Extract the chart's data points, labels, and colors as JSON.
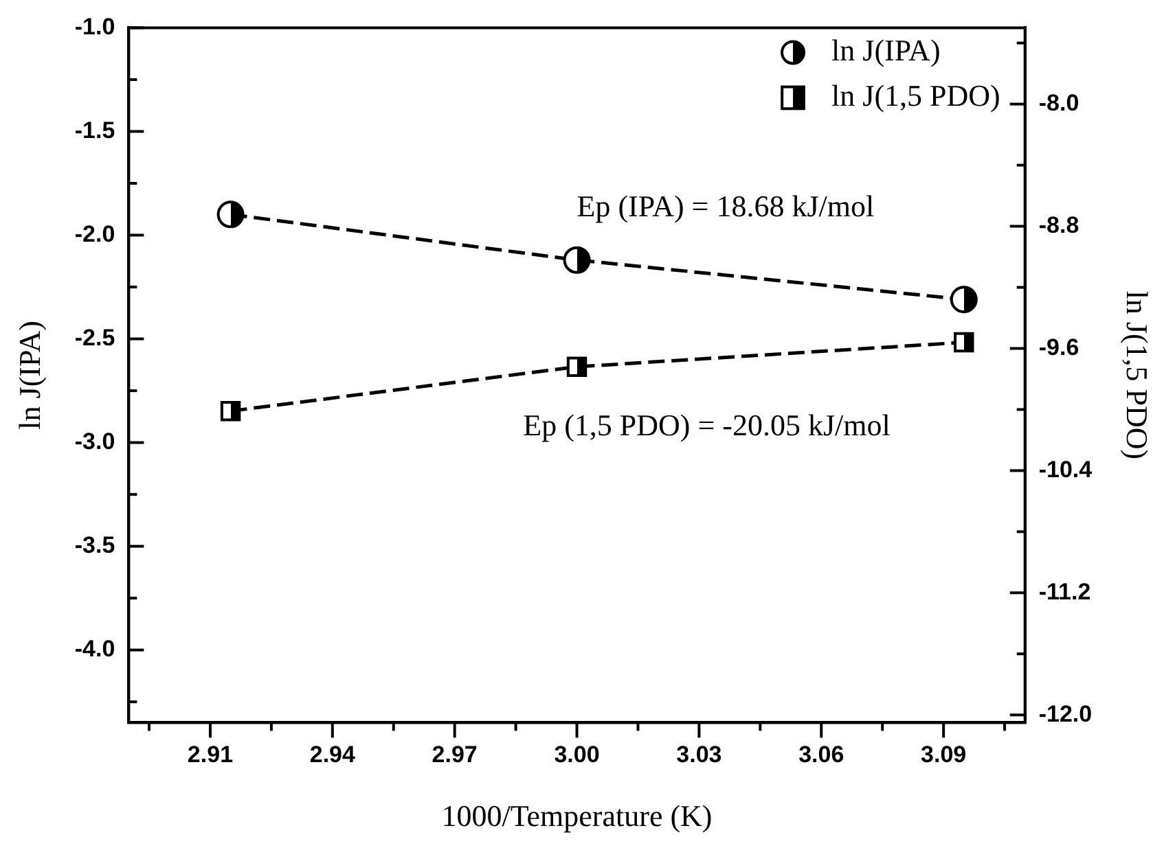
{
  "chart_data": {
    "type": "line",
    "xlabel": "1000/Temperature (K)",
    "ylabel": "ln J(IPA)",
    "y2label": "ln J(1,5 PDO)",
    "x": [
      2.915,
      3.0,
      3.095
    ],
    "series": [
      {
        "name": "ln J(IPA)",
        "color": "#000000",
        "values": [
          -1.9,
          -2.12,
          -2.31
        ],
        "marker": "circle",
        "line_style": "dashed"
      },
      {
        "name": "ln J(1,5 PDO)",
        "color": "#000000",
        "values": [
          -10.01,
          -9.72,
          -9.56
        ],
        "marker": "square",
        "line_style": "dashed",
        "axis": "y2"
      }
    ],
    "xlim": [
      2.89,
      3.11
    ],
    "xticks": [
      {
        "value": 2.895,
        "label": null
      },
      2.91,
      {
        "value": 2.925,
        "label": null
      },
      2.94,
      {
        "value": 2.955,
        "label": null
      },
      2.97,
      {
        "value": 2.985,
        "label": null
      },
      {
        "value": 3.0,
        "label": "3.00"
      },
      {
        "value": 3.015,
        "label": null
      },
      3.03,
      {
        "value": 3.045,
        "label": null
      },
      3.06,
      {
        "value": 3.075,
        "label": null
      },
      3.09,
      {
        "value": 3.105,
        "label": null
      }
    ],
    "ylim": [
      -4.35,
      -1.0
    ],
    "yticks": [
      {
        "value": -4.25,
        "label": null
      },
      {
        "value": -4.0,
        "label": "-4.0"
      },
      {
        "value": -3.75,
        "label": null
      },
      -3.5,
      {
        "value": -3.25,
        "label": null
      },
      {
        "value": -3.0,
        "label": "-3.0"
      },
      {
        "value": -2.75,
        "label": null
      },
      -2.5,
      {
        "value": -2.25,
        "label": null
      },
      {
        "value": -2.0,
        "label": "-2.0"
      },
      {
        "value": -1.75,
        "label": null
      },
      -1.5,
      {
        "value": -1.25,
        "label": null
      },
      {
        "value": -1.0,
        "label": "-1.0"
      }
    ],
    "y2lim": [
      -12.05,
      -7.5
    ],
    "y2ticks": [
      {
        "value": -12.0,
        "label": "-12.0"
      },
      {
        "value": -11.6,
        "label": null
      },
      -11.2,
      {
        "value": -10.8,
        "label": null
      },
      -10.4,
      {
        "value": -10.0,
        "label": null
      },
      -9.6,
      {
        "value": -9.2,
        "label": null
      },
      -8.8,
      {
        "value": -8.4,
        "label": null
      },
      {
        "value": -8.0,
        "label": "-8.0"
      },
      {
        "value": -7.6,
        "label": null
      }
    ],
    "annotations": [
      "Ep (IPA) = 18.68 kJ/mol",
      "Ep (1,5 PDO) = -20.05 kJ/mol"
    ],
    "grid": false,
    "legend": "top right"
  }
}
